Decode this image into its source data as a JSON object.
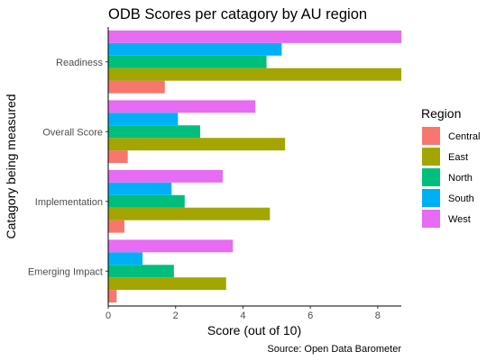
{
  "chart_data": {
    "type": "bar",
    "orientation": "horizontal",
    "title": "ODB Scores per catagory by AU region",
    "xlabel": "Score (out of 10)",
    "ylabel": "Catagory being measured",
    "caption": "Source: Open Data Barometer",
    "xlim": [
      0,
      8.7
    ],
    "x_ticks": [
      "0",
      "2",
      "4",
      "6",
      "8"
    ],
    "categories": [
      "Readiness",
      "Overall Score",
      "Implementation",
      "Emerging Impact"
    ],
    "legend": {
      "title": "Region",
      "position": "right"
    },
    "grid": false,
    "series": [
      {
        "name": "Central",
        "color": "#F8766D",
        "values": [
          1.68,
          0.58,
          0.48,
          0.25
        ]
      },
      {
        "name": "East",
        "color": "#A3A500",
        "values": [
          8.7,
          5.25,
          4.8,
          3.5
        ]
      },
      {
        "name": "North",
        "color": "#00BF7D",
        "values": [
          4.7,
          2.73,
          2.27,
          1.95
        ]
      },
      {
        "name": "South",
        "color": "#00B0F6",
        "values": [
          5.15,
          2.07,
          1.88,
          1.02
        ]
      },
      {
        "name": "West",
        "color": "#E76BF3",
        "values": [
          8.7,
          4.37,
          3.4,
          3.7
        ]
      }
    ]
  }
}
